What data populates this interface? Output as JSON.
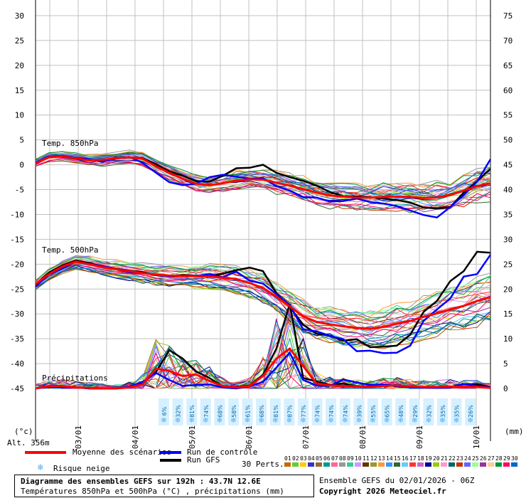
{
  "chart_data": {
    "type": "line",
    "plot": {
      "x_start": "2026-01-02 06Z",
      "x_end": "2026-01-10 06Z"
    },
    "y_left": {
      "min": -45,
      "max": 30,
      "ticks": [
        30,
        25,
        20,
        15,
        10,
        5,
        0,
        -5,
        -10,
        -15,
        -20,
        -25,
        -30,
        -35,
        -40,
        -45
      ],
      "unit_label": "(°c)"
    },
    "y_right": {
      "min": 0,
      "max": 75,
      "ticks": [
        75,
        70,
        65,
        60,
        55,
        50,
        45,
        40,
        35,
        30,
        25,
        20,
        15,
        10,
        5,
        0
      ],
      "unit_label": "(mm)"
    },
    "x_ticks": [
      "03/01",
      "04/01",
      "05/01",
      "06/01",
      "07/01",
      "08/01",
      "09/01",
      "10/01"
    ],
    "grid": true,
    "section_labels": {
      "t850": "Temp. 850hPa",
      "t500": "Temp. 500hPa",
      "precip": "Précipitations"
    },
    "altitude": "Alt. 356m",
    "snow_risk_percent": [
      "6%",
      "32%",
      "81%",
      "74%",
      "68%",
      "58%",
      "61%",
      "68%",
      "81%",
      "87%",
      "77%",
      "74%",
      "74%",
      "74%",
      "39%",
      "55%",
      "65%",
      "48%",
      "29%",
      "32%",
      "35%",
      "35%",
      "26%"
    ],
    "series": [
      {
        "name": "Moyenne des scénarios",
        "color": "#ff0000",
        "t850": [
          0.3,
          1.5,
          1.7,
          1.3,
          0.9,
          1.0,
          1.3,
          1.5,
          1.2,
          -0.3,
          -1.6,
          -2.8,
          -3.8,
          -4.1,
          -3.7,
          -3.2,
          -2.9,
          -3.0,
          -3.6,
          -4.2,
          -4.9,
          -5.6,
          -6.2,
          -6.4,
          -6.6,
          -6.6,
          -6.5,
          -6.4,
          -6.5,
          -6.7,
          -6.6,
          -6.1,
          -5.2,
          -4.3,
          -3.7
        ],
        "t500": [
          -24,
          -22,
          -20.5,
          -19.5,
          -20,
          -20.6,
          -21,
          -21.4,
          -21.8,
          -22.1,
          -22.3,
          -22.4,
          -22.4,
          -22.5,
          -22.7,
          -23,
          -23.8,
          -24.8,
          -26.5,
          -28.5,
          -30.5,
          -31.6,
          -32.1,
          -32.5,
          -32.8,
          -33,
          -32.6,
          -32,
          -31.4,
          -30.6,
          -29.9,
          -29.1,
          -28.4,
          -27.4,
          -26.6
        ],
        "precip": [
          0,
          0.5,
          0.5,
          0.2,
          0.1,
          0,
          0,
          0.2,
          0.8,
          4,
          3.5,
          2.5,
          2.8,
          1.5,
          0.5,
          0.2,
          0.5,
          2.5,
          6,
          8,
          4.5,
          1,
          0.6,
          0.5,
          0.4,
          0.3,
          0.5,
          0.6,
          0.4,
          0.3,
          0.3,
          0.4,
          0.3,
          0.3,
          0.1
        ]
      },
      {
        "name": "Run de contrôle",
        "color": "#0000ff",
        "t850": [
          0.4,
          1.6,
          1.8,
          1.4,
          1.1,
          0.6,
          1.2,
          1.6,
          0.4,
          -1.6,
          -3.5,
          -4.1,
          -3.8,
          -2.5,
          -2,
          -2.4,
          -2.8,
          -2.7,
          -4.3,
          -5.2,
          -6.5,
          -6.6,
          -7.4,
          -7.3,
          -6.8,
          -7.5,
          -7.8,
          -8.3,
          -9.2,
          -10.1,
          -10.6,
          -8.5,
          -6.1,
          -3.4,
          1.1
        ],
        "t500": [
          -24.5,
          -22.1,
          -20.9,
          -19.5,
          -20,
          -20.4,
          -21,
          -21.6,
          -21.8,
          -22.1,
          -22.5,
          -22.4,
          -22.4,
          -22,
          -22.6,
          -21.5,
          -23.3,
          -23.9,
          -26,
          -28.2,
          -33.1,
          -33.5,
          -34.4,
          -35.1,
          -37.5,
          -37.4,
          -37.9,
          -37.8,
          -36.4,
          -31.4,
          -29.1,
          -26.9,
          -22.5,
          -22,
          -18.1
        ],
        "precip": [
          0,
          0.3,
          0.2,
          0.2,
          0,
          0,
          0,
          0.4,
          1.3,
          3.1,
          1.7,
          0.5,
          0.7,
          0.8,
          0.2,
          0,
          0.4,
          1.3,
          4.2,
          7.2,
          1.7,
          0.6,
          0.5,
          1.8,
          1.2,
          0.7,
          0.8,
          0.4,
          0.2,
          0.2,
          0.1,
          0.2,
          0.9,
          0.5,
          0.2
        ]
      },
      {
        "name": "Run GFS",
        "color": "#000000",
        "t850": [
          0.4,
          1.6,
          1.6,
          1.2,
          0.9,
          0.9,
          1.4,
          1.5,
          1.3,
          0.1,
          -1.3,
          -2.2,
          -3.3,
          -3.4,
          -2.2,
          -0.7,
          -0.6,
          0,
          -1.6,
          -2.5,
          -3.2,
          -4.2,
          -5.5,
          -6.3,
          -6.4,
          -6.5,
          -6.8,
          -7.1,
          -7.6,
          -8.6,
          -8.8,
          -8.5,
          -5.6,
          -3.3,
          -0.8
        ],
        "t500": [
          -24.1,
          -21.7,
          -20.3,
          -19.3,
          -19.8,
          -20.4,
          -20.9,
          -21.3,
          -21.6,
          -22.2,
          -22.4,
          -22.2,
          -22.3,
          -22.4,
          -21.9,
          -21.2,
          -20.7,
          -21.4,
          -25.8,
          -28.6,
          -32.2,
          -34,
          -34.4,
          -35.4,
          -35.1,
          -36.7,
          -36.6,
          -36.4,
          -34.2,
          -29.6,
          -27.4,
          -23.4,
          -21.4,
          -17.5,
          -17.7
        ],
        "precip": [
          0,
          0.5,
          0.3,
          0.3,
          0,
          0,
          0,
          0.2,
          1,
          3.3,
          7.7,
          6,
          3.4,
          2.1,
          0.4,
          0.3,
          0.6,
          2.7,
          8,
          17,
          2.1,
          1.4,
          0.7,
          1,
          0.4,
          0.4,
          0.6,
          0.5,
          0.4,
          0.3,
          0.2,
          0.3,
          0.9,
          0.8,
          0.3
        ]
      }
    ],
    "perturbations": {
      "count_label": "30 Perts.",
      "ids": [
        "01",
        "02",
        "03",
        "04",
        "05",
        "06",
        "07",
        "08",
        "09",
        "10",
        "11",
        "12",
        "13",
        "14",
        "15",
        "16",
        "17",
        "18",
        "19",
        "20",
        "21",
        "22",
        "23",
        "24",
        "25",
        "26",
        "27",
        "28",
        "29",
        "30"
      ],
      "colors": [
        "#cc6600",
        "#66cc33",
        "#ffcc00",
        "#3333cc",
        "#996633",
        "#009999",
        "#ff6699",
        "#999999",
        "#33cc99",
        "#cc99ff",
        "#663300",
        "#999933",
        "#ff9933",
        "#3399ff",
        "#336633",
        "#66ccff",
        "#ff3333",
        "#cc66cc",
        "#000099",
        "#99cc00",
        "#ff99cc",
        "#006666",
        "#cc3300",
        "#6666ff",
        "#99ff99",
        "#993399",
        "#ffcc99",
        "#009933",
        "#ff0066",
        "#0066cc"
      ]
    }
  },
  "legend": {
    "mean": "Moyenne des scénarios",
    "control": "Run de contrôle",
    "gfs": "Run GFS",
    "snow": "Risque neige",
    "perts": "30 Perts."
  },
  "footer": {
    "title": "Diagramme des ensembles GEFS sur 192h : 43.7N 12.6E",
    "subtitle": "Températures 850hPa et 500hPa (°C) , précipitations (mm)",
    "run_info": "Ensemble GEFS du 02/01/2026 - 06Z",
    "copyright": "Copyright 2026 Meteociel.fr"
  },
  "colors": {
    "mean": "#ff0000",
    "control": "#0000ff",
    "gfs": "#000000",
    "grid": "#c0c0c0",
    "snow_bg": "#d6f0ff",
    "snow_icon": "#55aaee"
  }
}
